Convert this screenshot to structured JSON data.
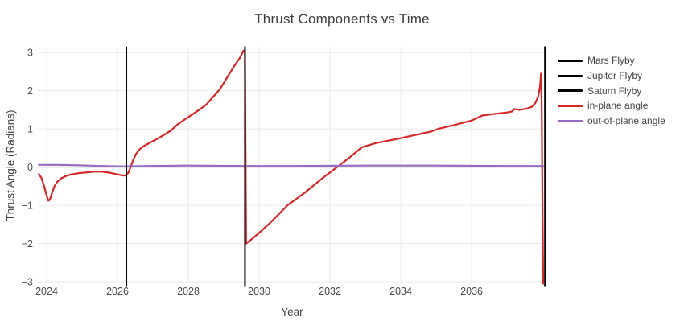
{
  "chart_data": {
    "type": "line",
    "title": "Thrust Components vs Time",
    "xlabel": "Year",
    "ylabel": "Thrust Angle (Radians)",
    "xlim": [
      2023.75,
      2038.1
    ],
    "ylim": [
      -3.04,
      3.13
    ],
    "xticks": [
      2024,
      2026,
      2028,
      2030,
      2032,
      2034,
      2036
    ],
    "yticks": [
      -3,
      -2,
      -1,
      0,
      1,
      2,
      3
    ],
    "grid": true,
    "grid_color": "#ebebeb",
    "zeroline_color": "#c9c9c9",
    "axis_text_color": "#4a4a4a",
    "background_color": "#ffffff",
    "legend_position": "right",
    "vlines": [
      {
        "label": "Mars Flyby",
        "x": 2026.25,
        "color": "#000000"
      },
      {
        "label": "Jupiter Flyby",
        "x": 2029.6,
        "color": "#000000"
      },
      {
        "label": "Saturn Flyby",
        "x": 2038.07,
        "color": "#000000"
      }
    ],
    "series": [
      {
        "name": "in-plane angle",
        "color": "#d62728",
        "width": 2.2,
        "points": [
          [
            2023.78,
            -0.18
          ],
          [
            2023.85,
            -0.28
          ],
          [
            2023.93,
            -0.5
          ],
          [
            2024.0,
            -0.75
          ],
          [
            2024.05,
            -0.88
          ],
          [
            2024.09,
            -0.85
          ],
          [
            2024.15,
            -0.68
          ],
          [
            2024.22,
            -0.5
          ],
          [
            2024.3,
            -0.38
          ],
          [
            2024.42,
            -0.29
          ],
          [
            2024.55,
            -0.23
          ],
          [
            2024.7,
            -0.19
          ],
          [
            2024.9,
            -0.16
          ],
          [
            2025.1,
            -0.14
          ],
          [
            2025.35,
            -0.12
          ],
          [
            2025.55,
            -0.12
          ],
          [
            2025.75,
            -0.14
          ],
          [
            2025.95,
            -0.18
          ],
          [
            2026.1,
            -0.21
          ],
          [
            2026.22,
            -0.22
          ],
          [
            2026.3,
            -0.16
          ],
          [
            2026.36,
            -0.02
          ],
          [
            2026.44,
            0.18
          ],
          [
            2026.52,
            0.34
          ],
          [
            2026.62,
            0.46
          ],
          [
            2026.72,
            0.54
          ],
          [
            2026.84,
            0.6
          ],
          [
            2027.0,
            0.68
          ],
          [
            2027.2,
            0.78
          ],
          [
            2027.5,
            0.95
          ],
          [
            2027.7,
            1.12
          ],
          [
            2027.9,
            1.25
          ],
          [
            2028.2,
            1.43
          ],
          [
            2028.5,
            1.63
          ],
          [
            2028.74,
            1.88
          ],
          [
            2028.9,
            2.05
          ],
          [
            2029.1,
            2.35
          ],
          [
            2029.3,
            2.65
          ],
          [
            2029.45,
            2.85
          ],
          [
            2029.56,
            3.05
          ],
          [
            2029.6,
            3.05
          ],
          [
            2029.63,
            -2.0
          ],
          [
            2029.8,
            -1.88
          ],
          [
            2030.0,
            -1.72
          ],
          [
            2030.3,
            -1.47
          ],
          [
            2030.8,
            -1.0
          ],
          [
            2031.3,
            -0.66
          ],
          [
            2031.8,
            -0.28
          ],
          [
            2032.2,
            0.0
          ],
          [
            2032.55,
            0.25
          ],
          [
            2032.9,
            0.52
          ],
          [
            2033.3,
            0.63
          ],
          [
            2033.8,
            0.72
          ],
          [
            2034.3,
            0.82
          ],
          [
            2034.85,
            0.93
          ],
          [
            2035.05,
            1.0
          ],
          [
            2035.5,
            1.1
          ],
          [
            2036.0,
            1.22
          ],
          [
            2036.3,
            1.35
          ],
          [
            2036.7,
            1.4
          ],
          [
            2037.0,
            1.43
          ],
          [
            2037.15,
            1.46
          ],
          [
            2037.2,
            1.52
          ],
          [
            2037.35,
            1.5
          ],
          [
            2037.55,
            1.53
          ],
          [
            2037.7,
            1.58
          ],
          [
            2037.8,
            1.68
          ],
          [
            2037.88,
            1.85
          ],
          [
            2037.93,
            2.1
          ],
          [
            2037.96,
            2.45
          ],
          [
            2037.98,
            1.5
          ],
          [
            2038.0,
            -1.0
          ],
          [
            2038.02,
            -3.05
          ]
        ]
      },
      {
        "name": "out-of-plane angle",
        "color": "#9669c3",
        "width": 2.2,
        "points": [
          [
            2023.78,
            0.06
          ],
          [
            2024.3,
            0.06
          ],
          [
            2024.9,
            0.05
          ],
          [
            2025.5,
            0.03
          ],
          [
            2026.1,
            0.02
          ],
          [
            2026.8,
            0.03
          ],
          [
            2028.0,
            0.04
          ],
          [
            2029.6,
            0.03
          ],
          [
            2031.0,
            0.03
          ],
          [
            2033.0,
            0.04
          ],
          [
            2035.0,
            0.04
          ],
          [
            2037.0,
            0.03
          ],
          [
            2038.02,
            0.03
          ]
        ]
      }
    ],
    "legend": {
      "items": [
        {
          "label": "Mars Flyby",
          "color": "#000000"
        },
        {
          "label": "Jupiter Flyby",
          "color": "#000000"
        },
        {
          "label": "Saturn Flyby",
          "color": "#000000"
        },
        {
          "label": "in-plane angle",
          "color": "#d62728"
        },
        {
          "label": "out-of-plane angle",
          "color": "#9669c3"
        }
      ]
    }
  }
}
